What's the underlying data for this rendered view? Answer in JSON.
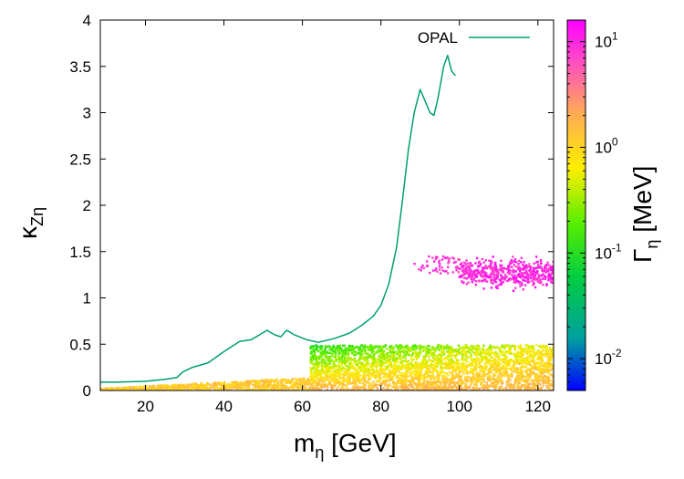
{
  "chart_data": {
    "type": "scatter",
    "xlabel": {
      "main": "m",
      "sub": "η",
      "unit": " [GeV]"
    },
    "ylabel": {
      "main": "κ",
      "sub": "Zη"
    },
    "xlim": [
      8.5,
      124
    ],
    "ylim": [
      0,
      4
    ],
    "xticks": [
      "20",
      "40",
      "60",
      "80",
      "100",
      "120"
    ],
    "xtick_values": [
      20,
      40,
      60,
      80,
      100,
      120
    ],
    "yticks": [
      "0",
      "0.5",
      "1",
      "1.5",
      "2",
      "2.5",
      "3",
      "3.5",
      "4"
    ],
    "ytick_values": [
      0,
      0.5,
      1,
      1.5,
      2,
      2.5,
      3,
      3.5,
      4
    ],
    "colorbar": {
      "label": {
        "main": "Γ",
        "sub": "η",
        "unit": " [MeV]"
      },
      "scale": "log",
      "range": [
        0.005,
        16
      ],
      "tick_exponents": [
        "-2",
        "-1",
        "0",
        "1"
      ],
      "tick_values": [
        0.01,
        0.1,
        1,
        10
      ],
      "colors": [
        "#0000ff",
        "#00a0a0",
        "#00cc44",
        "#55ee00",
        "#ffee00",
        "#ffaa55",
        "#ff44cc",
        "#ff00ff"
      ]
    },
    "series": [
      {
        "name": "OPAL",
        "type": "line",
        "color": "#009e73",
        "x": [
          8.5,
          12,
          20,
          25,
          28,
          29.5,
          32,
          36,
          40,
          44,
          47,
          49,
          51,
          53,
          54.5,
          56,
          58,
          61,
          64,
          68,
          72,
          75,
          78,
          80,
          82,
          84,
          85.5,
          87,
          88.5,
          90,
          91.5,
          92.5,
          93.5,
          94.5,
          96,
          97,
          98,
          99
        ],
        "y": [
          0.09,
          0.09,
          0.1,
          0.12,
          0.14,
          0.2,
          0.25,
          0.3,
          0.42,
          0.53,
          0.55,
          0.6,
          0.65,
          0.6,
          0.58,
          0.65,
          0.6,
          0.55,
          0.52,
          0.56,
          0.62,
          0.7,
          0.8,
          0.92,
          1.15,
          1.55,
          2.05,
          2.6,
          3.0,
          3.25,
          3.1,
          3.0,
          2.97,
          3.15,
          3.5,
          3.62,
          3.45,
          3.4
        ]
      }
    ],
    "scatter_regions": [
      {
        "name": "low-mass yellow band",
        "x_range": [
          8.5,
          62
        ],
        "y_base": [
          0.0,
          0.0
        ],
        "y_top": [
          0.02,
          0.14
        ],
        "width_mev": [
          0.8,
          1.8
        ]
      },
      {
        "name": "green band",
        "x_range": [
          62,
          124
        ],
        "y_range": [
          0.0,
          0.5
        ],
        "width_mev": [
          0.05,
          1.8
        ]
      },
      {
        "name": "magenta band",
        "x_range": [
          100,
          124
        ],
        "y_range": [
          1.0,
          1.45
        ],
        "width_mev": [
          6,
          16
        ]
      },
      {
        "name": "magenta scattered",
        "x_range": [
          88,
          100
        ],
        "y_range": [
          1.25,
          1.45
        ],
        "width_mev": [
          6,
          12
        ]
      }
    ]
  }
}
